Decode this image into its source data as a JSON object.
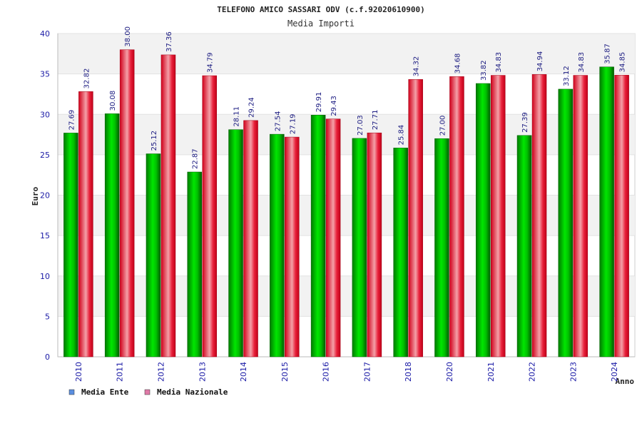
{
  "chart_data": {
    "type": "bar",
    "title": "TELEFONO AMICO SASSARI ODV (c.f.92020610900)",
    "subtitle": "Media Importi",
    "xlabel": "Anno",
    "ylabel": "Euro",
    "ylim": [
      0,
      40
    ],
    "yticks": [
      0,
      5,
      10,
      15,
      20,
      25,
      30,
      35,
      40
    ],
    "categories": [
      "2010",
      "2011",
      "2012",
      "2013",
      "2014",
      "2015",
      "2016",
      "2017",
      "2018",
      "2020",
      "2021",
      "2022",
      "2023",
      "2024"
    ],
    "series": [
      {
        "name": "Media Ente",
        "color": "#00c800",
        "values": [
          27.69,
          30.08,
          25.12,
          22.87,
          28.11,
          27.54,
          29.91,
          27.03,
          25.84,
          27.0,
          33.82,
          27.39,
          33.12,
          35.87
        ],
        "labels": [
          "27.69",
          "30.08",
          "25.12",
          "22.87",
          "28.11",
          "27.54",
          "29.91",
          "27.03",
          "25.84",
          "27.00",
          "33.82",
          "27.39",
          "33.12",
          "35.87"
        ]
      },
      {
        "name": "Media Nazionale",
        "color": "#e8001e",
        "values": [
          32.82,
          38.0,
          37.36,
          34.79,
          29.24,
          27.19,
          29.43,
          27.71,
          34.32,
          34.68,
          34.83,
          34.94,
          34.83,
          34.85
        ],
        "labels": [
          "32.82",
          "38.00",
          "37.36",
          "34.79",
          "29.24",
          "27.19",
          "29.43",
          "27.71",
          "34.32",
          "34.68",
          "34.83",
          "34.94",
          "34.83",
          "34.85"
        ]
      }
    ],
    "legend": {
      "placement": "bottom-left",
      "items": [
        {
          "label": "Media Ente",
          "swatch": "#5b8fe0"
        },
        {
          "label": "Media Nazionale",
          "swatch": "#e07aa8"
        }
      ]
    },
    "grid": true
  }
}
